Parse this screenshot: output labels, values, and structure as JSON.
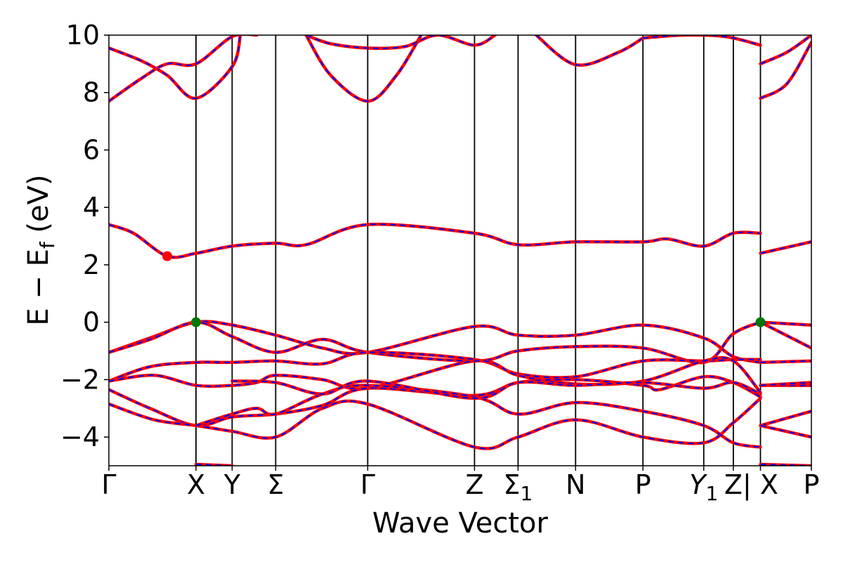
{
  "chart_data": {
    "type": "line",
    "title": "",
    "xlabel": "Wave Vector",
    "ylabel": "E − E_f (eV)",
    "ylabel_parts": {
      "main": "E − E",
      "sub": "f",
      "unit": " (eV)"
    },
    "ylim": [
      -5,
      10
    ],
    "yticks": [
      -4,
      -2,
      0,
      2,
      4,
      6,
      8,
      10
    ],
    "ytick_labels": [
      "−4",
      "−2",
      "0",
      "2",
      "4",
      "6",
      "8",
      "10"
    ],
    "xlim": [
      0,
      8.55
    ],
    "high_symmetry_points": [
      {
        "label": "Γ",
        "x": 0.0
      },
      {
        "label": "X",
        "x": 1.06
      },
      {
        "label": "Y",
        "x": 1.5
      },
      {
        "label": "Σ",
        "x": 2.03
      },
      {
        "label": "Γ",
        "x": 3.15
      },
      {
        "label": "Z",
        "x": 4.45
      },
      {
        "label": "Σ",
        "sub": "1",
        "x": 4.98
      },
      {
        "label": "N",
        "x": 5.68
      },
      {
        "label": "P",
        "x": 6.5
      },
      {
        "label": "Y",
        "sub": "1",
        "italic": true,
        "x": 7.24
      },
      {
        "label": "Z",
        "x": 7.6
      },
      {
        "label": "| X",
        "x": 7.93
      },
      {
        "label": "P",
        "x": 8.55
      }
    ],
    "line_style": {
      "color": "#ff0000",
      "overlay_color": "#0000ff",
      "overlay_dash": "8 6"
    },
    "markers": [
      {
        "name": "cbm",
        "x": 0.71,
        "y": 2.3,
        "color": "#ff0000"
      },
      {
        "name": "vbm",
        "x": 1.06,
        "y": 0.0,
        "color": "#007700"
      },
      {
        "name": "vbm",
        "x": 7.93,
        "y": 0.0,
        "color": "#007700"
      }
    ],
    "series": [
      {
        "x": [
          0,
          0.3,
          0.71,
          1.06,
          1.5,
          2.03,
          2.4,
          3.15,
          4.45,
          4.98,
          5.68,
          6.5,
          6.8,
          7.24,
          7.6,
          7.93
        ],
        "y": [
          3.4,
          3.1,
          2.3,
          2.4,
          2.65,
          2.75,
          2.7,
          3.4,
          3.1,
          2.7,
          2.8,
          2.8,
          2.9,
          2.65,
          3.1,
          3.1
        ]
      },
      {
        "x": [
          7.93,
          8.55
        ],
        "y": [
          2.4,
          2.8
        ]
      },
      {
        "x": [
          0,
          0.5,
          1.06,
          1.5,
          2.03,
          2.6,
          3.15,
          4.45,
          4.98,
          5.68,
          6.5,
          7.24,
          7.6,
          7.93
        ],
        "y": [
          -1.05,
          -0.55,
          0.0,
          -0.1,
          -0.45,
          -0.9,
          -1.05,
          -0.15,
          -0.45,
          -0.45,
          -0.1,
          -0.55,
          -1.2,
          -1.4
        ]
      },
      {
        "x": [
          0,
          0.5,
          1.06,
          1.5,
          2.03,
          2.6,
          3.15,
          4.45,
          4.98,
          5.68,
          6.5,
          7.24,
          7.6,
          7.93
        ],
        "y": [
          -1.05,
          -0.6,
          0.0,
          -0.5,
          -1.05,
          -0.6,
          -1.05,
          -1.35,
          -1.0,
          -0.85,
          -0.9,
          -1.4,
          -0.4,
          0.0
        ]
      },
      {
        "x": [
          7.93,
          8.55
        ],
        "y": [
          0.0,
          -0.1
        ]
      },
      {
        "x": [
          7.93,
          8.55
        ],
        "y": [
          0.0,
          -0.9
        ]
      },
      {
        "x": [
          0,
          0.5,
          1.06,
          1.5,
          2.03,
          2.6,
          3.15,
          4.45,
          4.98,
          5.68,
          6.5,
          7.24,
          7.6,
          7.93
        ],
        "y": [
          -2.05,
          -1.55,
          -1.4,
          -1.4,
          -1.35,
          -1.45,
          -1.05,
          -1.3,
          -1.8,
          -1.9,
          -1.35,
          -1.35,
          -1.3,
          -1.3
        ]
      },
      {
        "x": [
          7.93,
          8.55
        ],
        "y": [
          -1.4,
          -1.35
        ]
      },
      {
        "x": [
          0,
          0.55,
          1.06,
          1.5,
          1.8,
          2.03,
          2.6,
          3.15,
          4.45,
          4.98,
          5.68,
          6.5,
          7.24,
          7.6,
          7.93
        ],
        "y": [
          -2.05,
          -1.85,
          -2.2,
          -2.2,
          -2.1,
          -1.85,
          -2.0,
          -2.3,
          -1.35,
          -1.85,
          -2.15,
          -2.05,
          -1.35,
          -1.35,
          -2.45
        ]
      },
      {
        "x": [
          0,
          0.5,
          1.06,
          1.5,
          2.03,
          2.6,
          3.15,
          4.45,
          4.98,
          5.68,
          6.5,
          6.7,
          7.24,
          7.6,
          7.93
        ],
        "y": [
          -2.35,
          -3.0,
          -3.6,
          -3.3,
          -3.2,
          -2.9,
          -2.3,
          -2.55,
          -2.1,
          -2.0,
          -2.2,
          -2.35,
          -1.9,
          -2.1,
          -2.6
        ]
      },
      {
        "x": [
          0,
          0.55,
          1.06,
          1.5,
          2.03,
          2.6,
          3.15,
          4.45,
          4.98,
          5.68,
          6.5,
          7.24,
          7.6,
          7.93
        ],
        "y": [
          -2.85,
          -3.4,
          -3.6,
          -3.8,
          -4.0,
          -3.0,
          -2.85,
          -4.35,
          -4.0,
          -3.4,
          -4.0,
          -4.2,
          -3.5,
          -2.65
        ]
      },
      {
        "x": [
          1.06,
          1.5,
          1.8,
          2.03,
          2.6,
          3.15,
          4.45,
          4.98,
          5.68,
          6.5,
          7.24,
          7.6,
          7.93
        ],
        "y": [
          -3.6,
          -3.2,
          -3.0,
          -3.2,
          -2.5,
          -2.2,
          -2.6,
          -3.2,
          -2.8,
          -3.1,
          -3.6,
          -4.2,
          -4.35
        ]
      },
      {
        "x": [
          1.5,
          2.03,
          2.6,
          3.15,
          4.45,
          4.98,
          5.68,
          6.5,
          7.24,
          7.6,
          7.93
        ],
        "y": [
          -2.05,
          -2.1,
          -2.5,
          -2.05,
          -2.65,
          -2.1,
          -2.2,
          -2.1,
          -2.3,
          -2.1,
          -2.5
        ]
      },
      {
        "x": [
          7.93,
          8.55
        ],
        "y": [
          -2.2,
          -2.2
        ]
      },
      {
        "x": [
          7.93,
          8.55
        ],
        "y": [
          -2.2,
          -2.1
        ]
      },
      {
        "x": [
          7.93,
          8.55
        ],
        "y": [
          -3.6,
          -3.1
        ]
      },
      {
        "x": [
          7.93,
          8.55
        ],
        "y": [
          -3.6,
          -4.0
        ]
      },
      {
        "x": [
          1.06,
          1.5
        ],
        "y": [
          -4.95,
          -5.0
        ]
      },
      {
        "x": [
          7.93,
          8.55
        ],
        "y": [
          -4.95,
          -5.0
        ]
      },
      {
        "x": [
          0,
          0.4,
          0.71,
          1.06,
          1.5,
          1.6
        ],
        "y": [
          9.55,
          9.1,
          8.6,
          7.8,
          8.9,
          10.0
        ]
      },
      {
        "x": [
          0,
          0.4,
          0.71,
          1.06,
          1.5,
          1.8
        ],
        "y": [
          7.7,
          8.5,
          9.0,
          9.0,
          9.95,
          10.0
        ]
      },
      {
        "x": [
          2.4,
          2.7,
          3.15,
          3.5,
          3.8
        ],
        "y": [
          10.0,
          8.6,
          7.7,
          8.6,
          10.0
        ]
      },
      {
        "x": [
          2.4,
          2.7,
          3.15,
          3.6,
          4.0,
          4.45,
          4.7
        ],
        "y": [
          10.0,
          9.7,
          9.55,
          9.6,
          10.0,
          9.65,
          10.0
        ]
      },
      {
        "x": [
          5.2,
          5.68,
          6.2,
          6.5
        ],
        "y": [
          10.0,
          8.97,
          9.4,
          9.9
        ]
      },
      {
        "x": [
          6.5,
          7.0,
          7.5,
          7.93
        ],
        "y": [
          9.9,
          10.0,
          9.95,
          9.65
        ]
      },
      {
        "x": [
          7.93,
          8.25,
          8.55
        ],
        "y": [
          9.0,
          9.4,
          10.0
        ]
      },
      {
        "x": [
          7.93,
          8.25,
          8.55
        ],
        "y": [
          7.8,
          8.3,
          9.75
        ]
      }
    ]
  }
}
